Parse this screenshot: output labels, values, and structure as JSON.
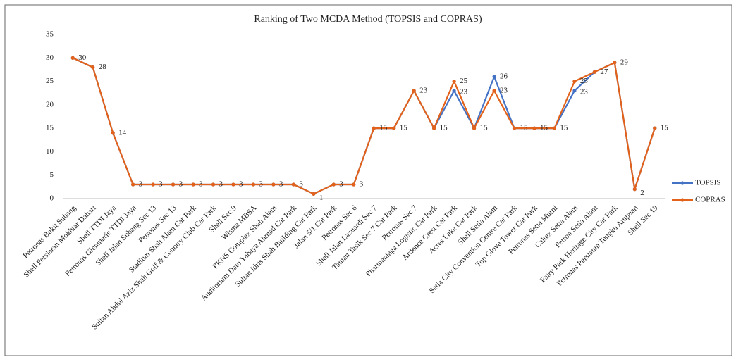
{
  "chart_data": {
    "type": "line",
    "title": "Ranking of Two MCDA Method (TOPSIS and COPRAS)",
    "categories": [
      "Petronas Bukit Subang",
      "Shell Persiaran Mokhtar Dahari",
      "Shell TTDI Jaya",
      "Petronas Glenmarie TTDI Jaya",
      "Shell Jalan Subang Sec 13",
      "Petronas Sec 13",
      "Stadium Shah Alam Car Park",
      "Sultan Abdul Aziz Shah Golf & Country Club Car Park",
      "Shell Sec 9",
      "Wisma MBSA",
      "PKNS Complex Shah Alam",
      "Auditorium Dato Yahaya Ahmad Car Park",
      "Sultan Idris Shah Building Car Park",
      "Jalan 5/1 Car Park",
      "Petronas Sec 6",
      "Shell Jalan Lazuardi Sec 7",
      "Taman Tasik Sec 7 Car Park",
      "Petronas Sec 7",
      "Pharmaniaga Logistic Car Park",
      "Ardence Crest Car Park",
      "Acres Lake Car Park",
      "Shell Setia Alam",
      "Setia City Convention Centre Car Park",
      "Top Glove Tower Car Park",
      "Petronas Setia Murni",
      "Caltex Setia Alam",
      "Petron Setia Alam",
      "Fairy Park Heritage City Car Park",
      "Petronas Persiaran Tengku Ampuan",
      "Shell Sec 19"
    ],
    "series": [
      {
        "name": "TOPSIS",
        "color": "#4472c4",
        "values": [
          30,
          28,
          14,
          3,
          3,
          3,
          3,
          3,
          3,
          3,
          3,
          3,
          1,
          3,
          3,
          15,
          15,
          23,
          15,
          23,
          15,
          26,
          15,
          15,
          15,
          23,
          27,
          29,
          2,
          15
        ]
      },
      {
        "name": "COPRAS",
        "color": "#e2621b",
        "values": [
          30,
          28,
          14,
          3,
          3,
          3,
          3,
          3,
          3,
          3,
          3,
          3,
          1,
          3,
          3,
          15,
          15,
          23,
          15,
          25,
          15,
          23,
          15,
          15,
          15,
          25,
          27,
          29,
          2,
          15
        ]
      }
    ],
    "ylim": [
      0,
      35
    ],
    "yticks": [
      0,
      5,
      10,
      15,
      20,
      25,
      30,
      35
    ],
    "grid": false,
    "legend": "right"
  }
}
